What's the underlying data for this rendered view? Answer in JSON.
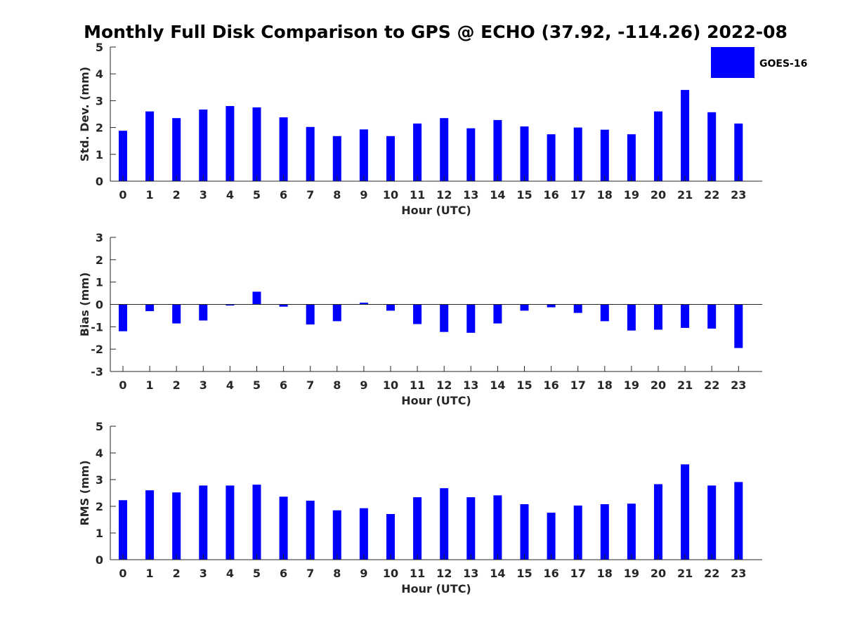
{
  "title": "Monthly Full Disk Comparison to GPS @ ECHO (37.92, -114.26) 2022-08",
  "legend": {
    "label": "GOES-16",
    "color": "#0000ff"
  },
  "chart_data": [
    {
      "type": "bar",
      "xlabel": "Hour (UTC)",
      "ylabel": "Std. Dev. (mm)",
      "ylim": [
        0,
        5
      ],
      "yticks": [
        "0",
        "1",
        "2",
        "3",
        "4",
        "5"
      ],
      "categories": [
        "0",
        "1",
        "2",
        "3",
        "4",
        "5",
        "6",
        "7",
        "8",
        "9",
        "10",
        "11",
        "12",
        "13",
        "14",
        "15",
        "16",
        "17",
        "18",
        "19",
        "20",
        "21",
        "22",
        "23"
      ],
      "series": [
        {
          "name": "GOES-16",
          "color": "#0000ff",
          "values": [
            1.88,
            2.6,
            2.35,
            2.67,
            2.8,
            2.75,
            2.38,
            2.02,
            1.68,
            1.93,
            1.68,
            2.15,
            2.35,
            1.97,
            2.28,
            2.04,
            1.75,
            2.0,
            1.92,
            1.75,
            2.6,
            3.4,
            2.57,
            2.15
          ]
        }
      ]
    },
    {
      "type": "bar",
      "xlabel": "Hour (UTC)",
      "ylabel": "Bias (mm)",
      "ylim": [
        -3,
        3
      ],
      "yticks": [
        "-3",
        "-2",
        "-1",
        "0",
        "1",
        "2",
        "3"
      ],
      "categories": [
        "0",
        "1",
        "2",
        "3",
        "4",
        "5",
        "6",
        "7",
        "8",
        "9",
        "10",
        "11",
        "12",
        "13",
        "14",
        "15",
        "16",
        "17",
        "18",
        "19",
        "20",
        "21",
        "22",
        "23"
      ],
      "series": [
        {
          "name": "GOES-16",
          "color": "#0000ff",
          "values": [
            -1.2,
            -0.3,
            -0.85,
            -0.72,
            -0.05,
            0.57,
            -0.1,
            -0.9,
            -0.75,
            0.08,
            -0.28,
            -0.88,
            -1.23,
            -1.27,
            -0.85,
            -0.28,
            -0.13,
            -0.38,
            -0.75,
            -1.17,
            -1.13,
            -1.05,
            -1.08,
            -1.95
          ]
        }
      ]
    },
    {
      "type": "bar",
      "xlabel": "Hour (UTC)",
      "ylabel": "RMS (mm)",
      "ylim": [
        0,
        5
      ],
      "yticks": [
        "0",
        "1",
        "2",
        "3",
        "4",
        "5"
      ],
      "categories": [
        "0",
        "1",
        "2",
        "3",
        "4",
        "5",
        "6",
        "7",
        "8",
        "9",
        "10",
        "11",
        "12",
        "13",
        "14",
        "15",
        "16",
        "17",
        "18",
        "19",
        "20",
        "21",
        "22",
        "23"
      ],
      "series": [
        {
          "name": "GOES-16",
          "color": "#0000ff",
          "values": [
            2.23,
            2.6,
            2.52,
            2.78,
            2.78,
            2.81,
            2.36,
            2.21,
            1.85,
            1.93,
            1.71,
            2.34,
            2.68,
            2.34,
            2.41,
            2.08,
            1.76,
            2.03,
            2.08,
            2.1,
            2.83,
            3.57,
            2.78,
            2.91
          ]
        }
      ]
    }
  ]
}
